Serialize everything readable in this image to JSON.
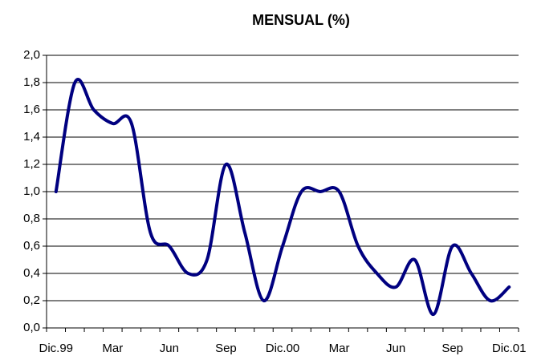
{
  "chart_data": {
    "type": "line",
    "title": "MENSUAL (%)",
    "categories": [
      "Dic.99",
      null,
      null,
      "Mar",
      null,
      null,
      "Jun",
      null,
      null,
      "Sep",
      null,
      null,
      "Dic.00",
      null,
      null,
      "Mar",
      null,
      null,
      "Jun",
      null,
      null,
      "Sep",
      null,
      null,
      "Dic.01"
    ],
    "series": [
      {
        "name": "MENSUAL",
        "color": "#000080",
        "values": [
          1.0,
          1.8,
          1.6,
          1.5,
          1.5,
          0.7,
          0.6,
          0.4,
          0.5,
          1.2,
          0.7,
          0.2,
          0.6,
          1.0,
          1.0,
          1.0,
          0.6,
          0.4,
          0.3,
          0.5,
          0.1,
          0.6,
          0.4,
          0.2,
          0.3
        ]
      }
    ],
    "ylim": [
      0,
      2.0
    ],
    "yticks": [
      {
        "value": 0,
        "label": "0,0"
      },
      {
        "value": 0.2,
        "label": "0,2"
      },
      {
        "value": 0.4,
        "label": "0,4"
      },
      {
        "value": 0.6,
        "label": "0,6"
      },
      {
        "value": 0.8,
        "label": "0,8"
      },
      {
        "value": 1.0,
        "label": "1,0"
      },
      {
        "value": 1.2,
        "label": "1,2"
      },
      {
        "value": 1.4,
        "label": "1,4"
      },
      {
        "value": 1.6,
        "label": "1,6"
      },
      {
        "value": 1.8,
        "label": "1,8"
      },
      {
        "value": 2.0,
        "label": "2,0"
      }
    ],
    "grid": true
  }
}
